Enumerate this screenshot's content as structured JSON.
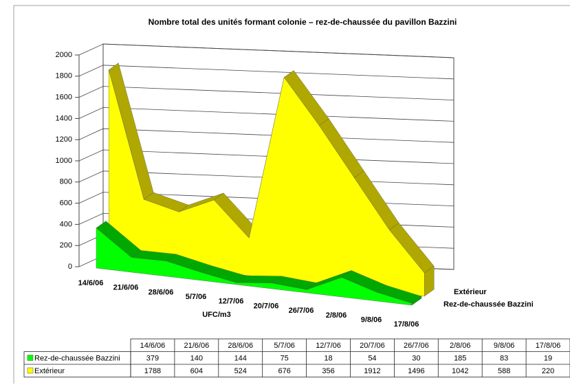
{
  "chart_data": {
    "type": "area3d",
    "title": "Nombre total des unités formant colonie – rez-de-chaussée du pavillon Bazzini",
    "y_label": "UFC/m3",
    "categories": [
      "14/6/06",
      "21/6/06",
      "28/6/06",
      "5/7/06",
      "12/7/06",
      "20/7/06",
      "26/7/06",
      "2/8/06",
      "9/8/06",
      "17/8/06"
    ],
    "series": [
      {
        "name": "Rez-de-chaussée Bazzini",
        "color": "#00ff00",
        "values": [
          379,
          140,
          144,
          75,
          18,
          54,
          30,
          185,
          83,
          19
        ]
      },
      {
        "name": "Extérieur",
        "color": "#ffff00",
        "values": [
          1788,
          604,
          524,
          676,
          356,
          1912,
          1496,
          1042,
          588,
          220
        ]
      }
    ],
    "ylim": [
      0,
      2000
    ],
    "yticks": [
      0,
      200,
      400,
      600,
      800,
      1000,
      1200,
      1400,
      1600,
      1800,
      2000
    ],
    "grid": true,
    "data_table": true
  }
}
